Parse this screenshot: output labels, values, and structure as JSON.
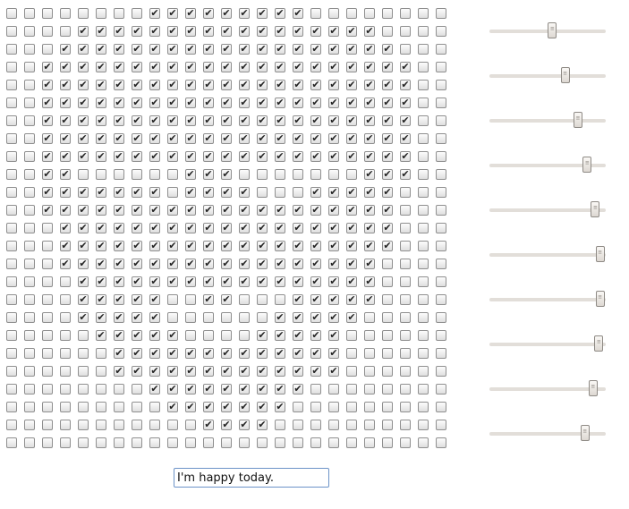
{
  "grid": {
    "rows": [
      "0000000011111111100000000",
      "0000111111111111111110000",
      "0001111111111111111111000",
      "0011111111111111111111100",
      "0011111111111111111111100",
      "0011111111111111111111100",
      "0011111111111111111111100",
      "0011111111111111111111100",
      "0011111111111111111111100",
      "0011000000111000000011100",
      "0011111110111100011111000",
      "0011111111111111111111000",
      "0001111111111111111111000",
      "0001111111111111111111000",
      "0001111111111111111110000",
      "0000111111111111111110000",
      "0000111110011000111110000",
      "0000111110000001111100000",
      "0000011111000011111000000",
      "0000001111111111111000000",
      "0000001111111111111000000",
      "0000000011111111100000000",
      "0000000001111111000000000",
      "0000000000011110000000000",
      "0000000000000000000000000"
    ],
    "check_glyph": "✔"
  },
  "sliders": {
    "values": [
      0.54,
      0.65,
      0.76,
      0.84,
      0.91,
      0.95,
      0.95,
      0.94,
      0.89,
      0.82
    ]
  },
  "text_input": {
    "value": "I'm happy today."
  }
}
